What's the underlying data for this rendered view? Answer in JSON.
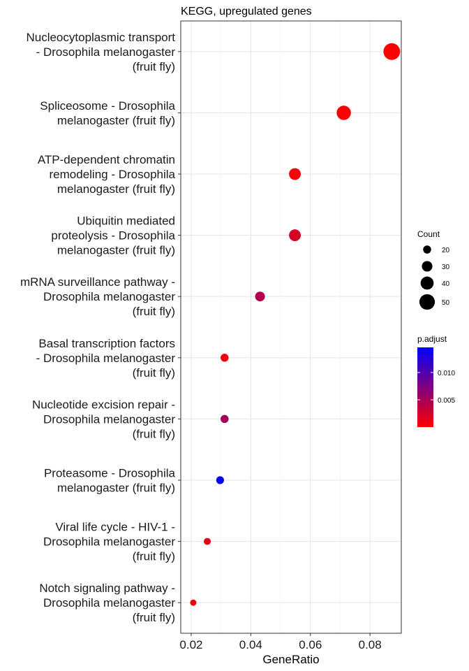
{
  "chart_data": {
    "type": "scatter",
    "title": "KEGG, upregulated genes",
    "xlabel": "GeneRatio",
    "ylabel": "",
    "xlim": [
      0.0165,
      0.0905
    ],
    "x_ticks": [
      0.02,
      0.04,
      0.06,
      0.08
    ],
    "x_tick_labels": [
      "0.02",
      "0.04",
      "0.06",
      "0.08"
    ],
    "grid": true,
    "legend_placement": "right",
    "color_low": "#FF0000",
    "color_high": "#0000FF",
    "points": [
      {
        "label": [
          "Nucleocytoplasmic transport",
          "- Drosophila melanogaster",
          "(fruit fly)"
        ],
        "x": 0.0873,
        "count": 55,
        "p_adjust": 0.0002
      },
      {
        "label": [
          "Spliceosome - Drosophila",
          "melanogaster (fruit fly)"
        ],
        "x": 0.0712,
        "count": 45,
        "p_adjust": 0.0002
      },
      {
        "label": [
          "ATP-dependent chromatin",
          "remodeling - Drosophila",
          "melanogaster (fruit fly)"
        ],
        "x": 0.0548,
        "count": 35,
        "p_adjust": 0.0005
      },
      {
        "label": [
          "Ubiquitin mediated",
          "proteolysis - Drosophila",
          "melanogaster (fruit fly)"
        ],
        "x": 0.0548,
        "count": 35,
        "p_adjust": 0.0022
      },
      {
        "label": [
          "mRNA surveillance pathway -",
          "Drosophila melanogaster",
          "(fruit fly)"
        ],
        "x": 0.0431,
        "count": 27,
        "p_adjust": 0.0045
      },
      {
        "label": [
          "Basal transcription factors",
          "- Drosophila melanogaster",
          "(fruit fly)"
        ],
        "x": 0.0312,
        "count": 20,
        "p_adjust": 0.0008
      },
      {
        "label": [
          "Nucleotide excision repair -",
          "Drosophila melanogaster",
          "(fruit fly)"
        ],
        "x": 0.0312,
        "count": 20,
        "p_adjust": 0.0052
      },
      {
        "label": [
          "Proteasome - Drosophila",
          "melanogaster (fruit fly)"
        ],
        "x": 0.0297,
        "count": 19,
        "p_adjust": 0.0142
      },
      {
        "label": [
          "Viral life cycle - HIV-1 -",
          "Drosophila melanogaster",
          "(fruit fly)"
        ],
        "x": 0.0254,
        "count": 16,
        "p_adjust": 0.0015
      },
      {
        "label": [
          "Notch signaling pathway -",
          "Drosophila melanogaster",
          "(fruit fly)"
        ],
        "x": 0.0207,
        "count": 13,
        "p_adjust": 0.0008
      }
    ],
    "size_legend": {
      "title": "Count",
      "values": [
        20,
        30,
        40,
        50
      ]
    },
    "color_legend": {
      "title": "p.adjust",
      "range": [
        0.0,
        0.0146
      ],
      "ticks": [
        0.005,
        0.01
      ],
      "tick_labels": [
        "0.005",
        "0.010"
      ]
    }
  }
}
